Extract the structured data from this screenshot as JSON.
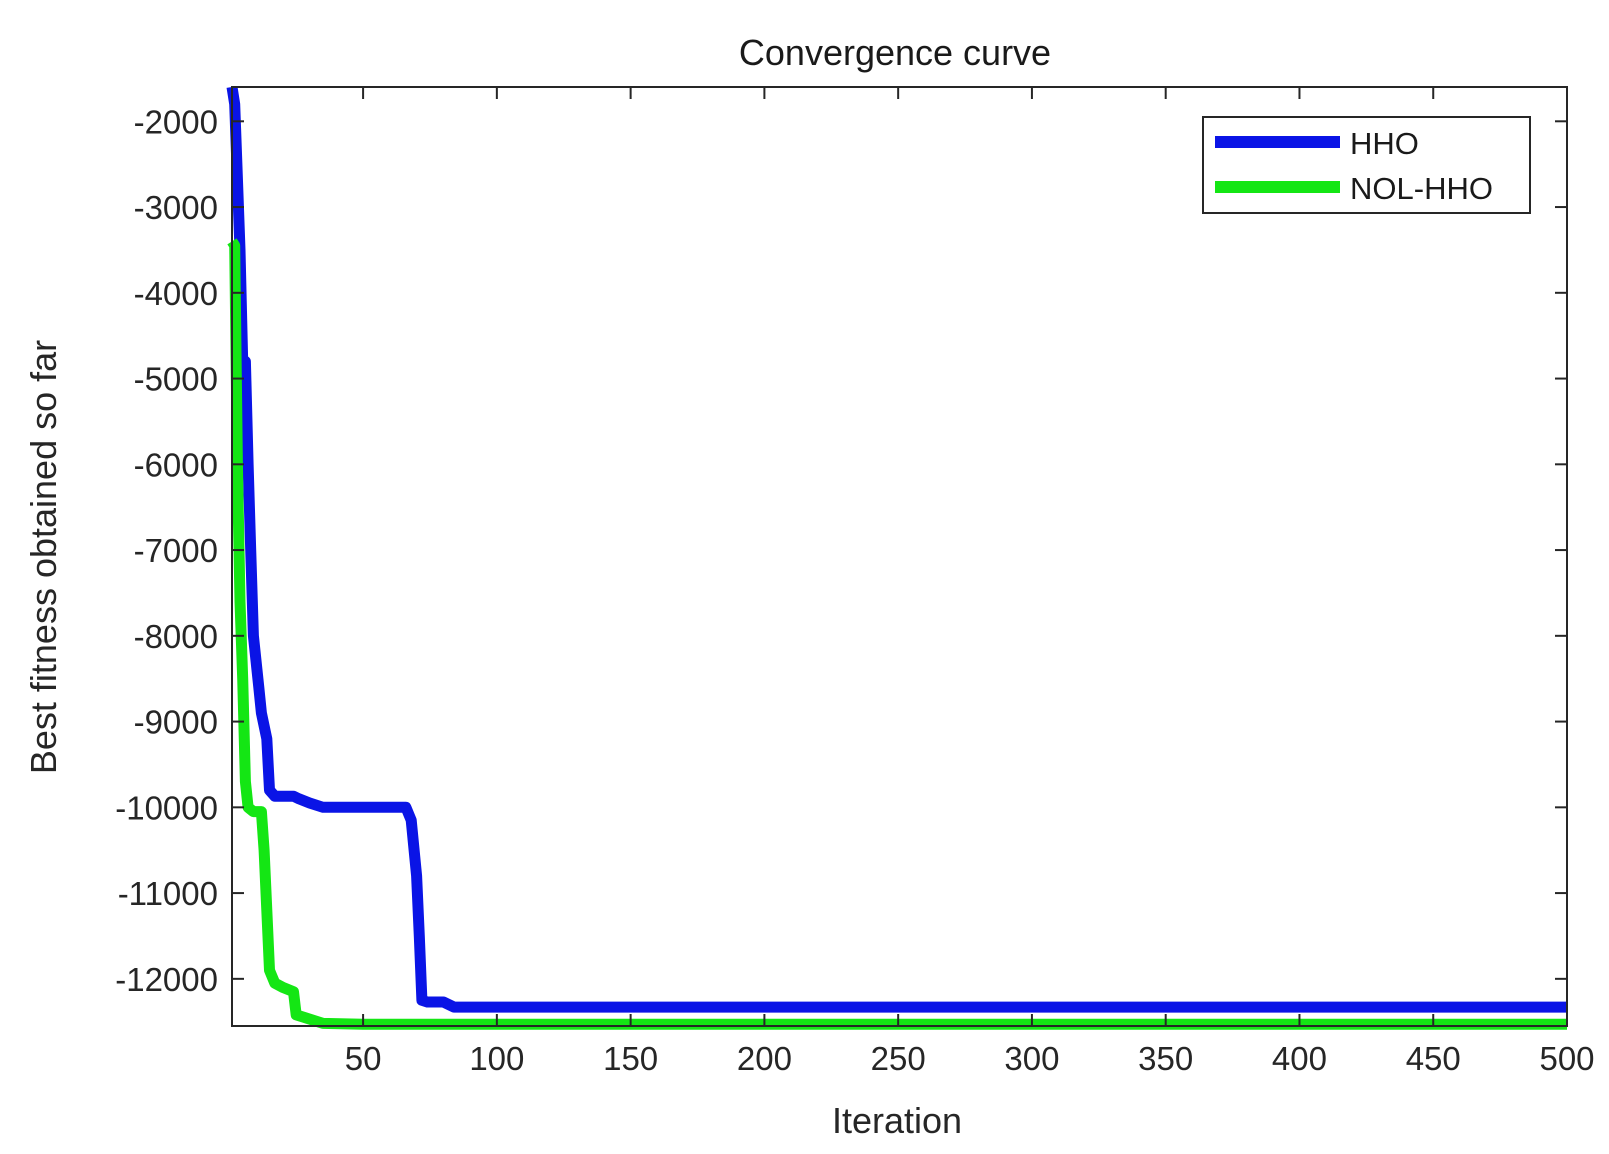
{
  "chart_data": {
    "type": "line",
    "title": "Convergence curve",
    "xlabel": "Iteration",
    "ylabel": "Best fitness obtained so far",
    "xlim": [
      1,
      500
    ],
    "ylim": [
      -12550,
      -1600
    ],
    "xticks": [
      50,
      100,
      150,
      200,
      250,
      300,
      350,
      400,
      450,
      500
    ],
    "yticks": [
      -2000,
      -3000,
      -4000,
      -5000,
      -6000,
      -7000,
      -8000,
      -9000,
      -10000,
      -11000,
      -12000
    ],
    "grid": false,
    "legend": "top-right",
    "series": [
      {
        "name": "HHO",
        "color": "#0a14e6",
        "points": [
          [
            1,
            -1600
          ],
          [
            2,
            -1800
          ],
          [
            4,
            -3500
          ],
          [
            5,
            -4800
          ],
          [
            6,
            -4800
          ],
          [
            7,
            -6000
          ],
          [
            8,
            -7000
          ],
          [
            9,
            -8000
          ],
          [
            11,
            -8600
          ],
          [
            12,
            -8900
          ],
          [
            14,
            -9200
          ],
          [
            15,
            -9800
          ],
          [
            17,
            -9870
          ],
          [
            24,
            -9870
          ],
          [
            26,
            -9900
          ],
          [
            30,
            -9950
          ],
          [
            35,
            -10000
          ],
          [
            66,
            -10000
          ],
          [
            68,
            -10150
          ],
          [
            70,
            -10800
          ],
          [
            71,
            -11500
          ],
          [
            72,
            -12250
          ],
          [
            74,
            -12270
          ],
          [
            80,
            -12270
          ],
          [
            84,
            -12330
          ],
          [
            100,
            -12330
          ],
          [
            500,
            -12330
          ]
        ]
      },
      {
        "name": "NOL-HHO",
        "color": "#14e614",
        "points": [
          [
            1,
            -3400
          ],
          [
            2,
            -3450
          ],
          [
            3,
            -6000
          ],
          [
            4,
            -7600
          ],
          [
            5,
            -8500
          ],
          [
            6,
            -9700
          ],
          [
            7,
            -10000
          ],
          [
            9,
            -10050
          ],
          [
            11,
            -10050
          ],
          [
            12,
            -10050
          ],
          [
            13,
            -10500
          ],
          [
            14,
            -11200
          ],
          [
            15,
            -11900
          ],
          [
            17,
            -12050
          ],
          [
            20,
            -12100
          ],
          [
            24,
            -12150
          ],
          [
            25,
            -12420
          ],
          [
            28,
            -12450
          ],
          [
            35,
            -12520
          ],
          [
            50,
            -12530
          ],
          [
            500,
            -12530
          ]
        ]
      }
    ]
  }
}
